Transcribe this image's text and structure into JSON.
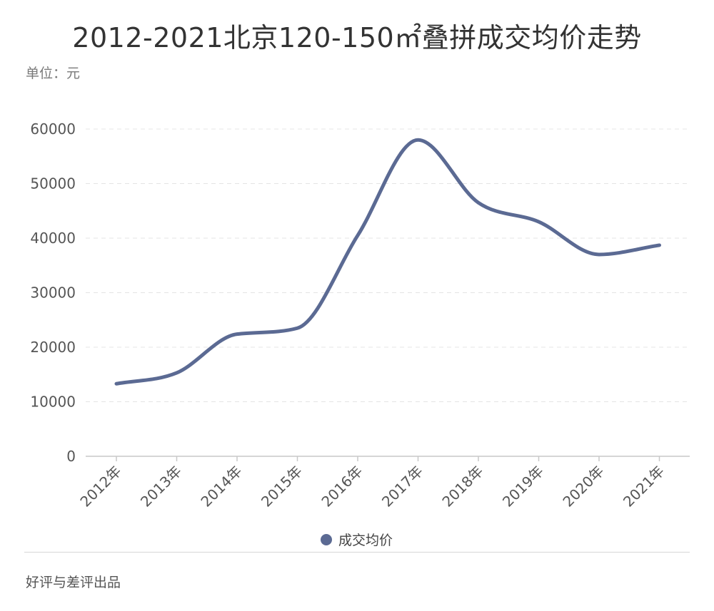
{
  "title": "2012-2021北京120-150㎡叠拼成交均价走势",
  "unit_label": "单位：元",
  "credit": "好评与差评出品",
  "chart_data": {
    "type": "line",
    "categories": [
      "2012年",
      "2013年",
      "2014年",
      "2015年",
      "2016年",
      "2017年",
      "2018年",
      "2019年",
      "2020年",
      "2021年"
    ],
    "series": [
      {
        "name": "成交均价",
        "values": [
          13300,
          15300,
          22400,
          23500,
          40500,
          58000,
          46500,
          43000,
          37000,
          38700
        ],
        "color": "#5b6a93"
      }
    ],
    "yticks": [
      0,
      10000,
      20000,
      30000,
      40000,
      50000,
      60000
    ],
    "ylim": [
      0,
      60000
    ],
    "grid": true,
    "legend": "bottom",
    "smooth": true
  }
}
